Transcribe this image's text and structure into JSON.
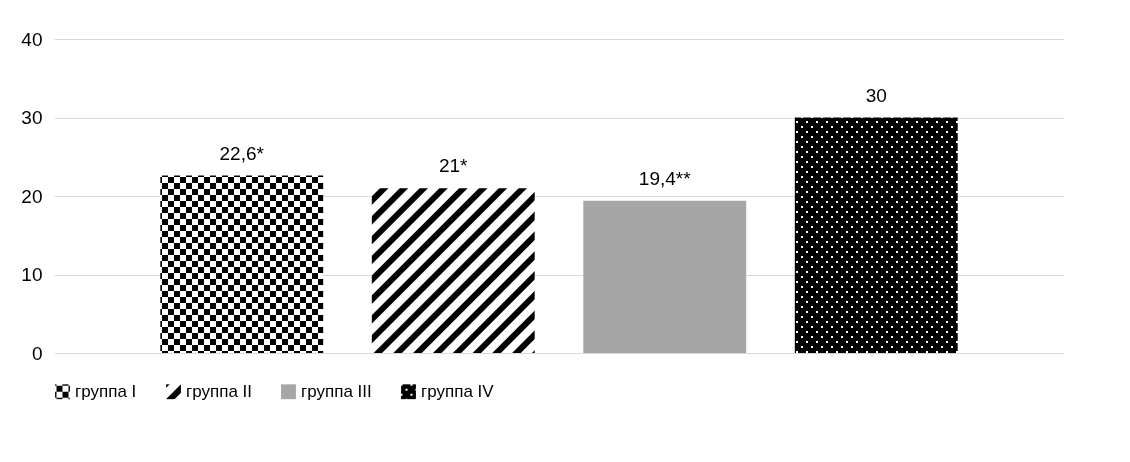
{
  "chart_data": {
    "type": "bar",
    "categories": [
      null
    ],
    "series": [
      {
        "name": "группа I",
        "color": "#000000",
        "values": [
          22.6
        ],
        "value_labels": [
          "22,6*"
        ]
      },
      {
        "name": "группа II",
        "color": "#000000",
        "values": [
          21
        ],
        "value_labels": [
          "21*"
        ]
      },
      {
        "name": "группа III",
        "color": "#a6a6a6",
        "values": [
          19.4
        ],
        "value_labels": [
          "19,4**"
        ]
      },
      {
        "name": "группа IV",
        "color": "#000000",
        "values": [
          30
        ],
        "value_labels": [
          "30"
        ]
      }
    ],
    "ylim": [
      0,
      40
    ],
    "yticks": [
      0,
      10,
      20,
      30,
      40
    ],
    "grid": "y",
    "legend": "bottom"
  }
}
